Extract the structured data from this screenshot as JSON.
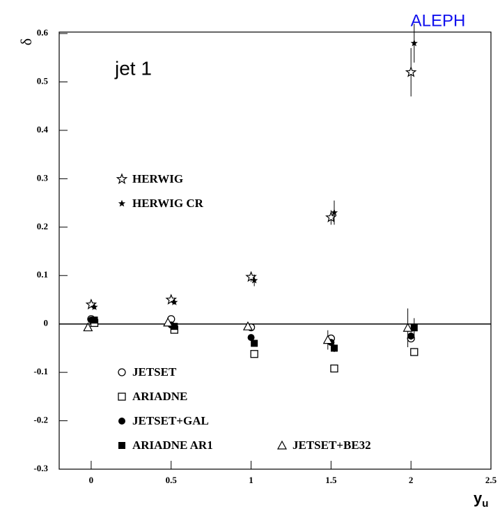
{
  "chart_data": {
    "type": "scatter",
    "experiment": "ALEPH",
    "annotation": "jet 1",
    "ylabel": "δ",
    "xlabel": {
      "main": "y",
      "sub": "u"
    },
    "xlim": [
      -0.2,
      2.5
    ],
    "ylim": [
      -0.3,
      0.603
    ],
    "xticks": [
      0,
      0.5,
      1,
      1.5,
      2,
      2.5
    ],
    "yticks": [
      -0.3,
      -0.2,
      -0.1,
      0,
      0.1,
      0.2,
      0.3,
      0.4,
      0.5,
      0.6
    ],
    "series": [
      {
        "name": "HERWIG",
        "marker": "star-open",
        "color": "#000000",
        "x": [
          0,
          0.5,
          1,
          1.5,
          2
        ],
        "values": [
          0.04,
          0.05,
          0.097,
          0.22,
          0.52
        ],
        "errors": [
          0.004,
          0.004,
          0.01,
          0.015,
          0.05
        ]
      },
      {
        "name": "HERWIG CR",
        "marker": "star-small",
        "color": "#000000",
        "x": [
          0.02,
          0.52,
          1.02,
          1.52,
          2.02
        ],
        "values": [
          0.035,
          0.045,
          0.09,
          0.23,
          0.58
        ],
        "errors": [
          0.004,
          0.004,
          0.012,
          0.025,
          0.04
        ]
      },
      {
        "name": "JETSET",
        "marker": "circle-open",
        "color": "#000000",
        "x": [
          0,
          0.5,
          1,
          1.5,
          2
        ],
        "values": [
          0.01,
          0.01,
          -0.007,
          -0.03,
          -0.03
        ],
        "errors": [
          0.004,
          0.004,
          0.005,
          0.006,
          0.008
        ]
      },
      {
        "name": "ARIADNE",
        "marker": "square-open",
        "color": "#000000",
        "x": [
          0.02,
          0.52,
          1.02,
          1.52,
          2.02
        ],
        "values": [
          0.002,
          -0.012,
          -0.062,
          -0.092,
          -0.058
        ],
        "errors": [
          0.004,
          0.004,
          0.005,
          0.006,
          0.008
        ]
      },
      {
        "name": "JETSET+GAL",
        "marker": "circle-filled",
        "color": "#000000",
        "x": [
          0,
          0.5,
          1,
          1.5,
          2
        ],
        "values": [
          0.008,
          -0.002,
          -0.028,
          -0.038,
          -0.025
        ],
        "errors": [
          0.004,
          0.004,
          0.005,
          0.006,
          0.008
        ]
      },
      {
        "name": "ARIADNE AR1",
        "marker": "square-filled",
        "color": "#000000",
        "x": [
          0.02,
          0.52,
          1.02,
          1.52,
          2.02
        ],
        "values": [
          0.008,
          -0.005,
          -0.04,
          -0.05,
          -0.008
        ],
        "errors": [
          0.004,
          0.004,
          0.005,
          0.008,
          0.02
        ]
      },
      {
        "name": "JETSET+BE32",
        "marker": "triangle-open",
        "color": "#000000",
        "x": [
          -0.02,
          0.48,
          0.98,
          1.48,
          1.98
        ],
        "values": [
          -0.007,
          0.003,
          -0.005,
          -0.033,
          -0.008
        ],
        "errors": [
          0.004,
          0.004,
          0.005,
          0.02,
          0.04
        ]
      }
    ]
  }
}
